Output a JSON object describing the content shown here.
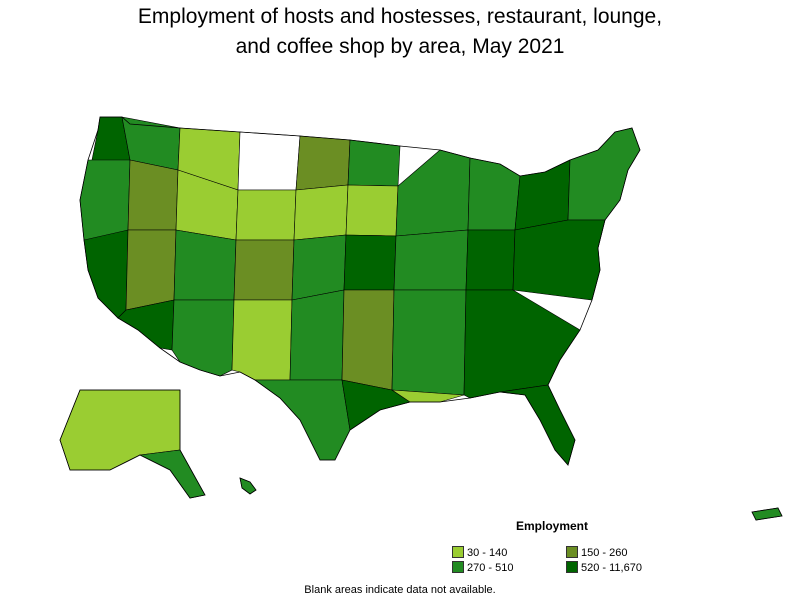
{
  "title": {
    "line1": "Employment of hosts and hostesses, restaurant, lounge,",
    "line2": "and coffee shop by area, May 2021"
  },
  "legend": {
    "title": "Employment",
    "items": [
      {
        "label": "30 - 140",
        "color": "#9acd32"
      },
      {
        "label": "150 - 260",
        "color": "#6b8e23"
      },
      {
        "label": "270 - 510",
        "color": "#228b22"
      },
      {
        "label": "520 - 11,670",
        "color": "#006400"
      }
    ]
  },
  "note": "Blank areas indicate data not available.",
  "colors": {
    "no_data": "#ffffff",
    "border": "#000000"
  }
}
